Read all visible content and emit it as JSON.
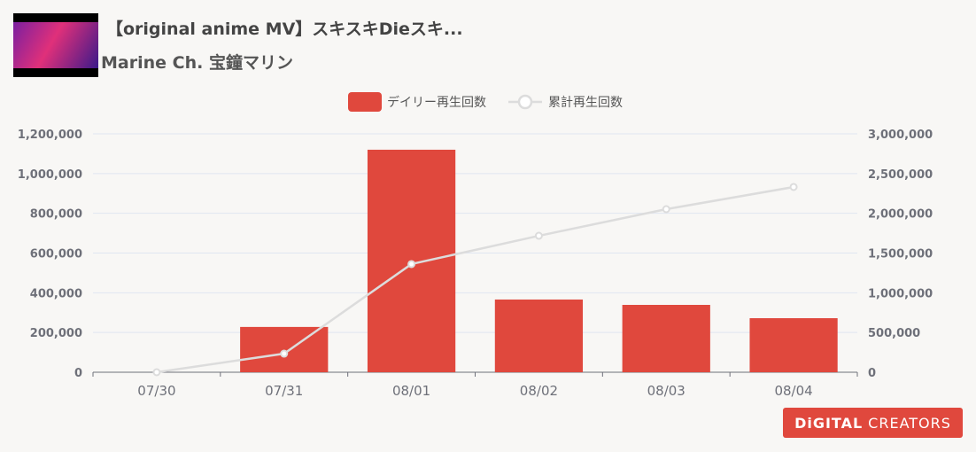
{
  "header": {
    "title": "【original anime MV】スキスキDieスキ...",
    "channel": "Marine Ch. 宝鐘マリン",
    "thumbnail_icon": "video-thumbnail"
  },
  "logo": {
    "part1": "DiGITAL",
    "part2": "CREATORS"
  },
  "colors": {
    "bar": "#e0483d",
    "line": "#dcdcdc",
    "grid": "#e0e6f1",
    "axis_text": "#6e7079"
  },
  "chart_data": {
    "type": "bar",
    "categories": [
      "07/30",
      "07/31",
      "08/01",
      "08/02",
      "08/03",
      "08/04"
    ],
    "series": [
      {
        "name": "デイリー再生回数",
        "type": "bar",
        "axis": "left",
        "values": [
          0,
          228000,
          1120000,
          366000,
          339000,
          272000
        ]
      },
      {
        "name": "累計再生回数",
        "type": "line",
        "axis": "right",
        "values": [
          0,
          234000,
          1361000,
          1717000,
          2052000,
          2331000
        ]
      }
    ],
    "y_left": {
      "min": 0,
      "max": 1200000,
      "ticks": [
        "0",
        "200,000",
        "400,000",
        "600,000",
        "800,000",
        "1,000,000",
        "1,200,000"
      ]
    },
    "y_right": {
      "min": 0,
      "max": 3000000,
      "ticks": [
        "0",
        "500,000",
        "1,000,000",
        "1,500,000",
        "2,000,000",
        "2,500,000",
        "3,000,000"
      ]
    },
    "legend": "top-center",
    "grid": true
  }
}
